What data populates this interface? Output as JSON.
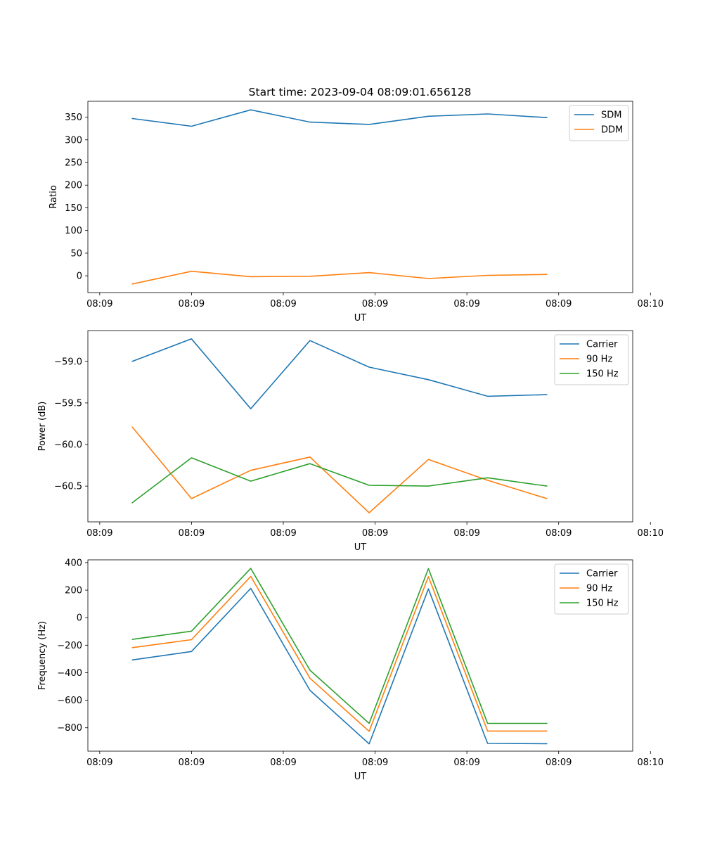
{
  "title": "Start time: 2023-09-04 08:09:01.656128",
  "colors": {
    "series1": "#1f77b4",
    "series2": "#ff7f0e",
    "series3": "#2ca02c"
  },
  "chart_data": [
    {
      "type": "line",
      "title": "Start time: 2023-09-04 08:09:01.656128",
      "xlabel": "UT",
      "ylabel": "Ratio",
      "xlim": [
        0,
        9.2
      ],
      "ylim": [
        -37,
        385
      ],
      "x": [
        0.75,
        1.75,
        2.75,
        3.75,
        4.75,
        5.75,
        6.75,
        7.75
      ],
      "xticks": [
        0.2,
        1.75,
        3.3,
        4.85,
        6.4,
        7.95,
        9.5
      ],
      "xtick_labels": [
        "08:09",
        "08:09",
        "08:09",
        "08:09",
        "08:09",
        "08:09",
        "08:10"
      ],
      "yticks": [
        0,
        50,
        100,
        150,
        200,
        250,
        300,
        350
      ],
      "ytick_labels": [
        "0",
        "50",
        "100",
        "150",
        "200",
        "250",
        "300",
        "350"
      ],
      "legend_position": "top-right",
      "series": [
        {
          "name": "SDM",
          "color": "#1f77b4",
          "values": [
            347,
            330,
            366,
            339,
            334,
            352,
            357,
            349
          ]
        },
        {
          "name": "DDM",
          "color": "#ff7f0e",
          "values": [
            -18,
            10,
            -2,
            -1,
            7,
            -6,
            1,
            3
          ]
        }
      ]
    },
    {
      "type": "line",
      "title": "",
      "xlabel": "UT",
      "ylabel": "Power (dB)",
      "xlim": [
        0,
        9.2
      ],
      "ylim": [
        -60.93,
        -58.63
      ],
      "x": [
        0.75,
        1.75,
        2.75,
        3.75,
        4.75,
        5.75,
        6.75,
        7.75
      ],
      "xticks": [
        0.2,
        1.75,
        3.3,
        4.85,
        6.4,
        7.95,
        9.5
      ],
      "xtick_labels": [
        "08:09",
        "08:09",
        "08:09",
        "08:09",
        "08:09",
        "08:09",
        "08:10"
      ],
      "yticks": [
        -59.0,
        -59.5,
        -60.0,
        -60.5
      ],
      "ytick_labels": [
        "−59.0",
        "−59.5",
        "−60.0",
        "−60.5"
      ],
      "legend_position": "top-right",
      "series": [
        {
          "name": "Carrier",
          "color": "#1f77b4",
          "values": [
            -59.0,
            -58.73,
            -59.57,
            -58.75,
            -59.07,
            -59.22,
            -59.42,
            -59.4
          ]
        },
        {
          "name": "90 Hz",
          "color": "#ff7f0e",
          "values": [
            -59.79,
            -60.65,
            -60.31,
            -60.15,
            -60.82,
            -60.18,
            -60.43,
            -60.65
          ]
        },
        {
          "name": "150 Hz",
          "color": "#2ca02c",
          "values": [
            -60.7,
            -60.16,
            -60.44,
            -60.23,
            -60.49,
            -60.5,
            -60.4,
            -60.5
          ]
        }
      ]
    },
    {
      "type": "line",
      "title": "",
      "xlabel": "UT",
      "ylabel": "Frequency (Hz)",
      "xlim": [
        0,
        9.2
      ],
      "ylim": [
        -970,
        420
      ],
      "x": [
        0.75,
        1.75,
        2.75,
        3.75,
        4.75,
        5.75,
        6.75,
        7.75
      ],
      "xticks": [
        0.2,
        1.75,
        3.3,
        4.85,
        6.4,
        7.95,
        9.5
      ],
      "xtick_labels": [
        "08:09",
        "08:09",
        "08:09",
        "08:09",
        "08:09",
        "08:09",
        "08:10"
      ],
      "yticks": [
        400,
        200,
        0,
        -200,
        -400,
        -600,
        -800
      ],
      "ytick_labels": [
        "400",
        "200",
        "0",
        "−200",
        "−400",
        "−600",
        "−800"
      ],
      "legend_position": "top-right",
      "series": [
        {
          "name": "Carrier",
          "color": "#1f77b4",
          "values": [
            -307,
            -246,
            213,
            -528,
            -917,
            209,
            -914,
            -916
          ]
        },
        {
          "name": "90 Hz",
          "color": "#ff7f0e",
          "values": [
            -218,
            -160,
            300,
            -440,
            -826,
            298,
            -824,
            -824
          ]
        },
        {
          "name": "150 Hz",
          "color": "#2ca02c",
          "values": [
            -158,
            -98,
            358,
            -382,
            -768,
            356,
            -768,
            -768
          ]
        }
      ]
    }
  ]
}
